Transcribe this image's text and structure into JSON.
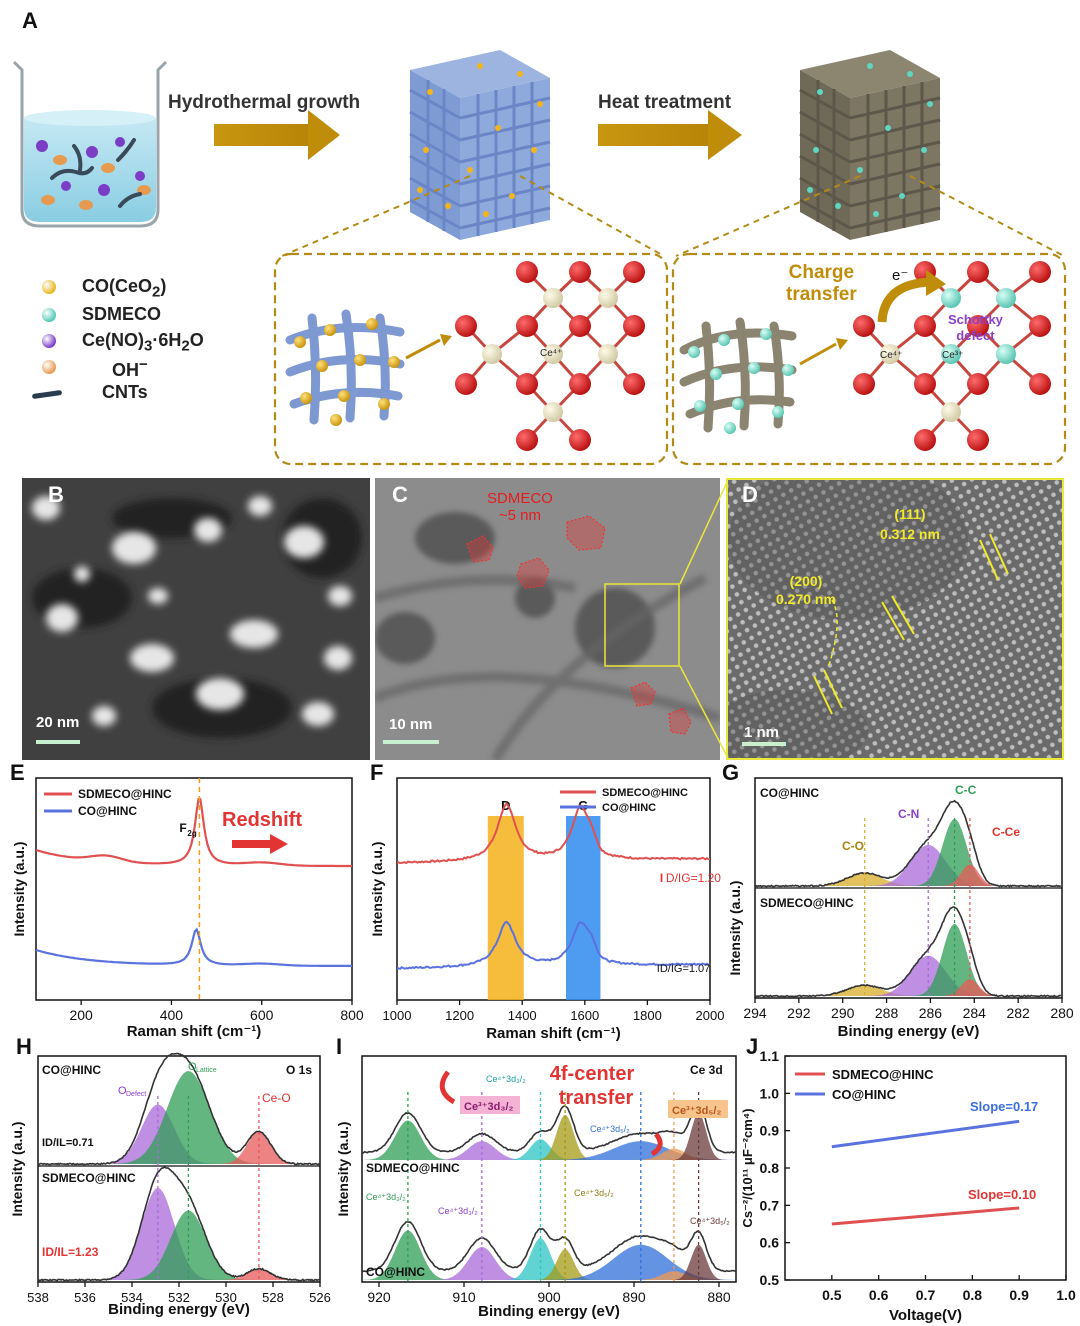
{
  "panels": {
    "A": {
      "letter": "A",
      "step1": "Hydrothermal growth",
      "step2": "Heat treatment",
      "legend": [
        {
          "label_html": "CO(CeO<sub>2</sub>)",
          "color": "#e8b61e"
        },
        {
          "label_html": "SDMECO",
          "color": "#52c9b4"
        },
        {
          "label_html": "Ce(NO)<sub>3</sub>·6H<sub>2</sub>O",
          "color": "#7b3cc6"
        },
        {
          "label_html": "OH<sup>−</sup>",
          "color": "#e69a50"
        },
        {
          "label_html": "CNTs",
          "color": "#2a3b4e"
        }
      ],
      "charge_transfer": "Charge\ntransfer",
      "electron": "e⁻",
      "schottky": "Schottky\ndefect",
      "ce4": "Ce⁴⁺",
      "ce3": "Ce³⁺"
    },
    "B": {
      "letter": "B",
      "scale": "20 nm"
    },
    "C": {
      "letter": "C",
      "label": "SDMECO\n~5 nm",
      "scale": "10 nm"
    },
    "D": {
      "letter": "D",
      "lattice1": "(111)\n0.312 nm",
      "lattice2": "(200)\n0.270 nm",
      "scale": "1 nm"
    },
    "E": {
      "letter": "E",
      "title_note": "Redshift",
      "peak": "F2g"
    },
    "F": {
      "letter": "F",
      "band_d": "D",
      "band_g": "G"
    },
    "G": {
      "letter": "G"
    },
    "H": {
      "letter": "H"
    },
    "I": {
      "letter": "I",
      "annotation": "4f-center\ntransfer"
    },
    "J": {
      "letter": "J"
    }
  },
  "chart_data": [
    {
      "panel": "E",
      "type": "line",
      "xlabel": "Raman shift (cm⁻¹)",
      "ylabel": "Intensity (a.u.)",
      "xlim": [
        100,
        800
      ],
      "xticks": [
        200,
        400,
        600,
        800
      ],
      "series": [
        {
          "name": "SDMECO@HINC",
          "color": "#e05050",
          "peak": 462,
          "offset": 0.62,
          "height": 0.34
        },
        {
          "name": "CO@HINC",
          "color": "#5a72de",
          "peak": 455,
          "offset": 0.12,
          "height": 0.18
        }
      ],
      "annotations": [
        "F2g",
        "Redshift"
      ]
    },
    {
      "panel": "F",
      "type": "line",
      "xlabel": "Raman shift (cm⁻¹)",
      "ylabel": "Intensity (a.u.)",
      "xlim": [
        1000,
        2000
      ],
      "xticks": [
        1000,
        1200,
        1400,
        1600,
        1800,
        2000
      ],
      "bands": [
        {
          "label": "D",
          "range": [
            1290,
            1405
          ],
          "color": "#f5b21b"
        },
        {
          "label": "G",
          "range": [
            1540,
            1650
          ],
          "color": "#2f8af0"
        }
      ],
      "series": [
        {
          "name": "SDMECO@HINC",
          "color": "#e05050",
          "ratio_label": "ID/IG=1.20",
          "offset": 0.62
        },
        {
          "name": "CO@HINC",
          "color": "#5a72de",
          "ratio_label": "ID/IG=1.07",
          "offset": 0.12
        }
      ]
    },
    {
      "panel": "G",
      "type": "area",
      "xlabel": "Binding energy (eV)",
      "ylabel": "Intensity (a.u.)",
      "xlim": [
        294,
        280
      ],
      "xticks": [
        294,
        292,
        290,
        288,
        286,
        284,
        282,
        280
      ],
      "series_labels": [
        "CO@HINC",
        "SDMECO@HINC"
      ],
      "components": [
        {
          "name": "C-O",
          "center": 289.0,
          "color": "#d8ad2a"
        },
        {
          "name": "C-N",
          "center": 286.1,
          "color": "#a86ad8"
        },
        {
          "name": "C-C",
          "center": 284.9,
          "color": "#2f9e55"
        },
        {
          "name": "C-Ce",
          "center": 284.2,
          "color": "#e8595a"
        }
      ]
    },
    {
      "panel": "H",
      "type": "area",
      "xlabel": "Binding energy (eV)",
      "ylabel": "Intensity (a.u.)",
      "xlim": [
        538,
        526
      ],
      "xticks": [
        538,
        536,
        534,
        532,
        530,
        528,
        526
      ],
      "title": "O 1s",
      "series": [
        {
          "name": "CO@HINC",
          "ratio_label": "ID/IL=0.71"
        },
        {
          "name": "SDMECO@HINC",
          "ratio_label": "ID/IL=1.23"
        }
      ],
      "components": [
        {
          "name": "ODefect",
          "center": 532.9,
          "color": "#a86ad8"
        },
        {
          "name": "OLattice",
          "center": 531.6,
          "color": "#2f9e55"
        },
        {
          "name": "Ce-O",
          "center": 528.6,
          "color": "#e8595a"
        }
      ]
    },
    {
      "panel": "I",
      "type": "area",
      "xlabel": "Binding energy (eV)",
      "ylabel": "Intensity (a.u.)",
      "xlim": [
        922,
        878
      ],
      "xticks": [
        920,
        910,
        900,
        890,
        880
      ],
      "title": "Ce 3d",
      "series_labels": [
        "SDMECO@HINC",
        "CO@HINC"
      ],
      "components": [
        {
          "name": "Ce4+3d3/2",
          "center": 916.6,
          "color": "#2f9e55"
        },
        {
          "name": "Ce3+3d3/2",
          "center": 907.9,
          "color": "#a86ad8"
        },
        {
          "name": "Ce4+3d3/2",
          "center": 901.0,
          "color": "#2cc4c4"
        },
        {
          "name": "Ce4+3d5/2",
          "center": 898.1,
          "color": "#a69a17"
        },
        {
          "name": "Ce4+3d5/2",
          "center": 889.2,
          "color": "#2f6fd8"
        },
        {
          "name": "Ce3+3d5/2",
          "center": 885.3,
          "color": "#f09a52"
        },
        {
          "name": "Ce4+3d5/2",
          "center": 882.4,
          "color": "#6b3b3b"
        }
      ]
    },
    {
      "panel": "J",
      "type": "line",
      "xlabel": "Voltage(V)",
      "ylabel": "Cs⁻²/(10¹¹ μF⁻²cm⁴)",
      "xlim": [
        0.4,
        1.0
      ],
      "ylim": [
        0.5,
        1.1
      ],
      "xticks": [
        0.5,
        0.6,
        0.7,
        0.8,
        0.9,
        1.0
      ],
      "yticks": [
        0.5,
        0.6,
        0.7,
        0.8,
        0.9,
        1.0,
        1.1
      ],
      "series": [
        {
          "name": "SDMECO@HINC",
          "color": "#e05050",
          "x": [
            0.5,
            0.9
          ],
          "y": [
            0.65,
            0.693
          ],
          "slope_label": "Slope=0.10"
        },
        {
          "name": "CO@HINC",
          "color": "#5a72de",
          "x": [
            0.5,
            0.9
          ],
          "y": [
            0.857,
            0.925
          ],
          "slope_label": "Slope=0.17"
        }
      ]
    }
  ]
}
